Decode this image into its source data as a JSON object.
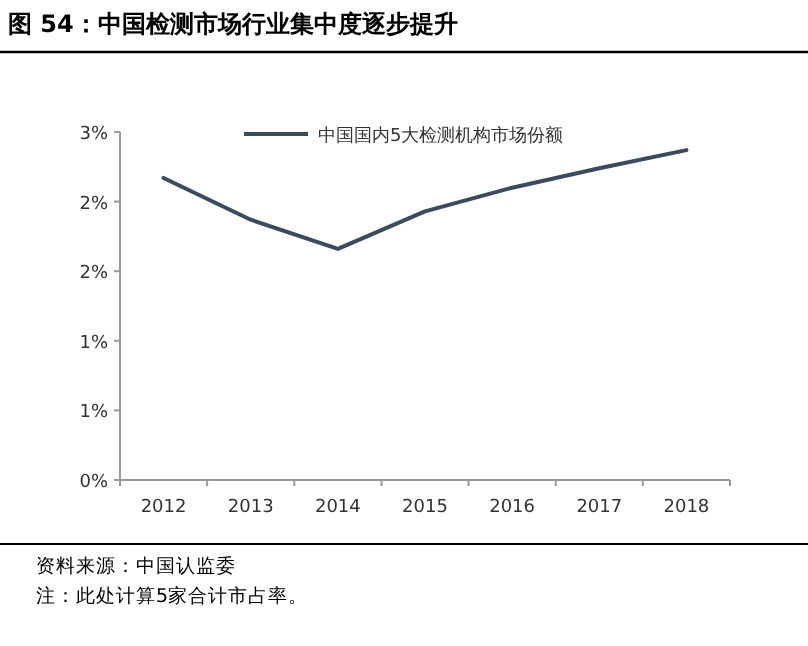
{
  "chart_data": {
    "type": "line",
    "title": "图 54：中国检测市场行业集中度逐步提升",
    "categories": [
      "2012",
      "2013",
      "2014",
      "2015",
      "2016",
      "2017",
      "2018"
    ],
    "series": [
      {
        "name": "中国国内5大检测机构市场份额",
        "color": "#3b4a5c",
        "values": [
          2.17,
          1.87,
          1.66,
          1.93,
          2.1,
          2.24,
          2.37
        ]
      }
    ],
    "ylim": [
      0,
      2.5
    ],
    "yticks": [
      {
        "value": 0,
        "label": "0%"
      },
      {
        "value": 0.5,
        "label": "1%"
      },
      {
        "value": 1,
        "label": "1%"
      },
      {
        "value": 1.5,
        "label": "2%"
      },
      {
        "value": 2,
        "label": "2%"
      },
      {
        "value": 2.5,
        "label": "3%"
      }
    ],
    "legend": "top",
    "annotations": [
      "资料来源：中国认监委",
      "注：此处计算5家合计市占率。"
    ]
  }
}
